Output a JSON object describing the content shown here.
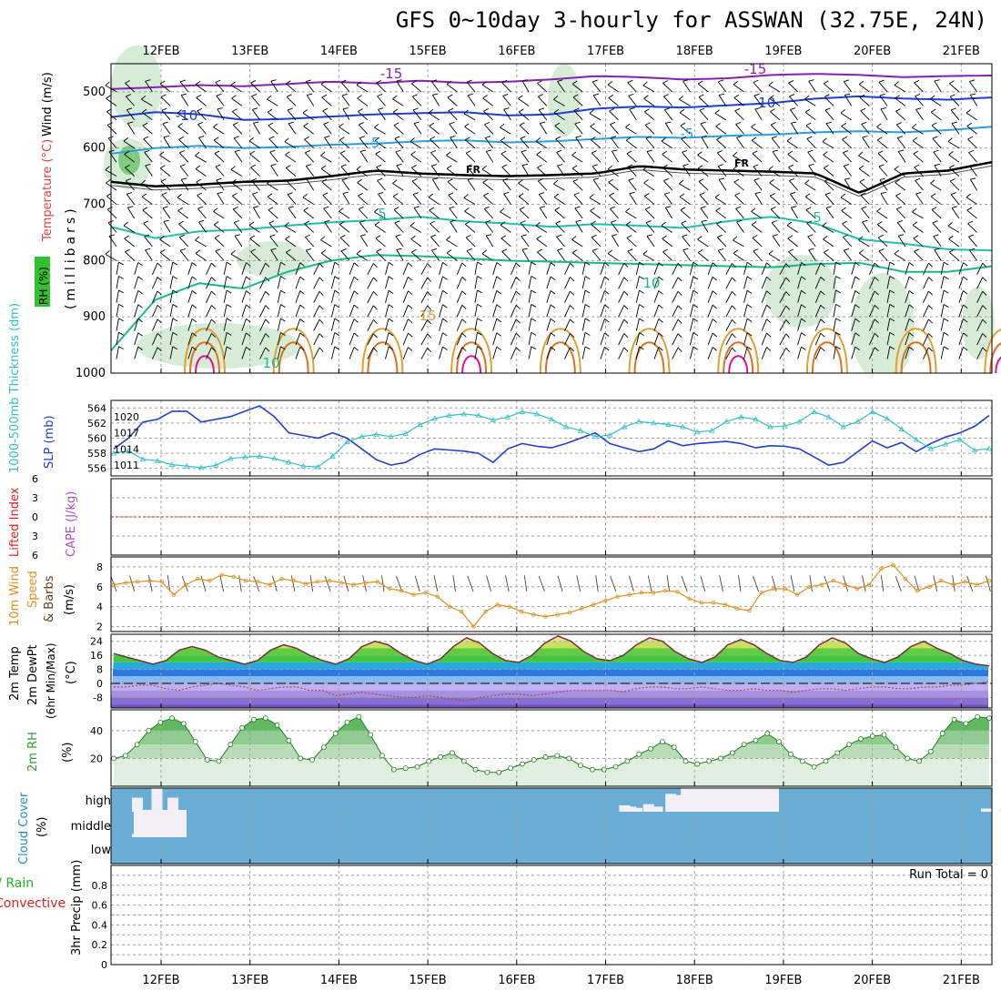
{
  "title": "GFS 0~10day 3-hourly for ASSWAN (32.75E, 24N)",
  "colors": {
    "frame": "#000000",
    "grid": "#a0a0a0",
    "temp_m15": "#8a1fb3",
    "temp_m10": "#1e3fd0",
    "temp_m5": "#2aa0e0",
    "temp_fr": "#000000",
    "temp_p5": "#20c0b0",
    "temp_p10": "#18b890",
    "temp_p15": "#e0a030",
    "temp_p20": "#e07018",
    "temp_p25": "#e01090",
    "rh_fill": "#c8e6c8",
    "slp": "#2040d0",
    "thickness": "#30c0c8",
    "lifted": "#e02020",
    "cape": "#b050c0",
    "wind10m": "#e09020",
    "barb": "#604020",
    "t2m_line": "#7a3030",
    "dewpt_line": "#a05050",
    "rh2m": "#30a030",
    "cloud_bg": "#6aaed6",
    "cloud_fill": "#f2f0f6",
    "precip_total": "#20b020",
    "precip_conv": "#e02020"
  },
  "chart_data": [
    {
      "panel": "upper-air",
      "type": "heatmap",
      "x_ticks": [
        "12FEB",
        "13FEB",
        "14FEB",
        "15FEB",
        "16FEB",
        "17FEB",
        "18FEB",
        "19FEB",
        "20FEB",
        "21FEB"
      ],
      "ylabel": "(millibars)",
      "side_labels": [
        "Wind (m/s)",
        "Temperature (°C)",
        "RH (%)"
      ],
      "y_ticks": [
        500,
        600,
        700,
        800,
        900,
        1000
      ],
      "ylim": [
        450,
        1000
      ],
      "contour_labels": [
        "-15",
        "-10",
        "-5",
        "FR",
        "5",
        "10",
        "15"
      ],
      "isotherms": [
        {
          "name": "-15",
          "color_key": "temp_m15",
          "values": [
            495,
            492,
            488,
            490,
            486,
            482,
            485,
            480,
            484,
            482,
            478,
            472,
            474,
            478,
            476,
            470,
            468,
            470,
            474,
            472,
            471
          ]
        },
        {
          "name": "-10",
          "color_key": "temp_m10",
          "values": [
            545,
            536,
            540,
            550,
            548,
            544,
            540,
            538,
            536,
            542,
            540,
            530,
            526,
            528,
            524,
            520,
            512,
            508,
            512,
            514,
            510
          ]
        },
        {
          "name": "-5",
          "color_key": "temp_m5",
          "values": [
            610,
            600,
            596,
            600,
            598,
            594,
            592,
            588,
            586,
            590,
            588,
            584,
            580,
            582,
            578,
            576,
            572,
            570,
            572,
            568,
            562
          ]
        },
        {
          "name": "FR",
          "color_key": "temp_fr",
          "values": [
            660,
            668,
            665,
            660,
            658,
            650,
            640,
            645,
            648,
            650,
            648,
            645,
            632,
            638,
            640,
            642,
            645,
            680,
            645,
            640,
            625
          ]
        },
        {
          "name": "5",
          "color_key": "temp_p5",
          "values": [
            740,
            760,
            748,
            745,
            738,
            732,
            728,
            722,
            730,
            734,
            740,
            735,
            738,
            742,
            730,
            722,
            734,
            762,
            770,
            780,
            782
          ]
        },
        {
          "name": "10",
          "color_key": "temp_p10",
          "values": [
            960,
            870,
            840,
            850,
            820,
            800,
            790,
            792,
            796,
            800,
            802,
            804,
            806,
            808,
            810,
            812,
            806,
            804,
            820,
            820,
            810
          ]
        }
      ],
      "warm_cells_c": [
        15,
        20,
        25
      ]
    },
    {
      "panel": "thickness-slp",
      "type": "line",
      "x_ticks": [
        "12FEB",
        "13FEB",
        "14FEB",
        "15FEB",
        "16FEB",
        "17FEB",
        "18FEB",
        "19FEB",
        "20FEB",
        "21FEB"
      ],
      "left_label": "1000-500mb Thickness (dm)",
      "right_label": "SLP (mb)",
      "left_ticks": [
        556,
        558,
        560,
        562,
        564
      ],
      "left_lim": [
        555,
        565
      ],
      "right_ticks": [
        1011,
        1014,
        1017,
        1020
      ],
      "series": [
        {
          "name": "SLP",
          "unit": "mb",
          "color_key": "slp",
          "values": [
            1014,
            1016,
            1019,
            1019.5,
            1021,
            1021,
            1019,
            1019.5,
            1020,
            1021,
            1022,
            1020,
            1017,
            1016.5,
            1016,
            1017,
            1016,
            1014,
            1012,
            1011,
            1011.5,
            1013,
            1014,
            1013.8,
            1013.6,
            1013.2,
            1011.5,
            1014,
            1015,
            1014.5,
            1014.2,
            1015,
            1016,
            1017,
            1015,
            1014.2,
            1013.5,
            1014,
            1015.5,
            1014.6,
            1015,
            1015.2,
            1015.4,
            1015,
            1014.2,
            1014.6,
            1014.5,
            1014,
            1012.5,
            1011,
            1011.5,
            1013.5,
            1015.5,
            1014.2,
            1015.2,
            1013.5,
            1015,
            1016.2,
            1017,
            1018.2,
            1020.2
          ]
        },
        {
          "name": "Thickness",
          "unit": "dm",
          "color_key": "thickness",
          "values": [
            558,
            558.3,
            557.2,
            557,
            556.5,
            556.3,
            556.1,
            556.4,
            557.3,
            557.5,
            557.6,
            557.3,
            556.8,
            556.3,
            556.2,
            557.6,
            559.5,
            560.2,
            560.5,
            560.2,
            560.6,
            561.8,
            562.6,
            563.0,
            563.2,
            563.0,
            562.4,
            562.8,
            563.5,
            563.2,
            562.5,
            561.5,
            561,
            560.2,
            560.4,
            561.5,
            562.2,
            562,
            561.8,
            561.5,
            560.8,
            561,
            562.2,
            562.8,
            562.5,
            561.5,
            561.6,
            562.2,
            563.5,
            562.8,
            561.5,
            562.2,
            563.5,
            562.6,
            561.2,
            559.8,
            558.6,
            559.2,
            559.8,
            558.4,
            558.6
          ]
        }
      ]
    },
    {
      "panel": "stability",
      "type": "line",
      "left_label": "Lifted Index",
      "right_label": "CAPE (J/kg)",
      "y_ticks": [
        -6,
        -3,
        0,
        3,
        6
      ],
      "ylim": [
        -6,
        6
      ],
      "series": [
        {
          "name": "Lifted Index",
          "color_key": "lifted",
          "values": []
        },
        {
          "name": "CAPE",
          "color_key": "cape",
          "values": []
        }
      ]
    },
    {
      "panel": "wind10m",
      "type": "line",
      "left_label": "10m Wind Speed & Barbs",
      "unit_label": "(m/s)",
      "y_ticks": [
        2,
        4,
        6,
        8
      ],
      "ylim": [
        1.5,
        9
      ],
      "series": [
        {
          "name": "10m Wind Speed",
          "color_key": "wind10m",
          "values": [
            6.2,
            6.4,
            6.5,
            6.6,
            6.5,
            5.2,
            6.2,
            6.8,
            6.6,
            7.2,
            7.0,
            6.6,
            6.5,
            6.2,
            6.8,
            6.6,
            6.3,
            6.5,
            6.6,
            6.4,
            6.2,
            6.4,
            6.5,
            5.8,
            5.6,
            5.2,
            5.4,
            5.0,
            4.0,
            3.5,
            2.0,
            3.5,
            4.2,
            4.0,
            3.5,
            3.2,
            3.0,
            3.2,
            3.4,
            3.8,
            4.2,
            4.6,
            5.0,
            5.2,
            5.4,
            5.4,
            5.6,
            5.5,
            4.8,
            4.4,
            4.4,
            4.2,
            3.8,
            3.6,
            5.4,
            5.8,
            5.8,
            5.2,
            6.0,
            6.2,
            6.6,
            6.2,
            5.8,
            6.2,
            7.8,
            8.2,
            6.8,
            5.6,
            6.0,
            6.6,
            6.2,
            6.5,
            6.2,
            6.6
          ]
        }
      ]
    },
    {
      "panel": "temperature",
      "type": "area",
      "left_labels": [
        "2m Temp",
        "2m DewPt",
        "(6hr Min/Max)"
      ],
      "unit_label": "(°C)",
      "y_ticks": [
        -8,
        0,
        8,
        16,
        24
      ],
      "ylim": [
        -14,
        28
      ],
      "series": [
        {
          "name": "2m Temp",
          "color_key": "t2m_line",
          "values": [
            17,
            15,
            13,
            11,
            13,
            19,
            21,
            19,
            15,
            13,
            11,
            13,
            19,
            22,
            20,
            16,
            13,
            11,
            14,
            21,
            24,
            22,
            17,
            13,
            11,
            14,
            21,
            26,
            23,
            17,
            13,
            12,
            16,
            23,
            27,
            24,
            18,
            14,
            13,
            16,
            22,
            26,
            24,
            18,
            14,
            12,
            15,
            22,
            25,
            22,
            17,
            13,
            12,
            15,
            22,
            26,
            23,
            17,
            14,
            12,
            15,
            21,
            24,
            20,
            17,
            13,
            11,
            10
          ]
        },
        {
          "name": "2m DewPt",
          "color_key": "dewpt_line",
          "values": [
            -2,
            -2,
            -1,
            -1,
            -3,
            -4,
            -2,
            -1,
            0,
            -1,
            -2,
            -4,
            -3,
            -2,
            -2,
            -4,
            -4,
            -7,
            -6,
            -5,
            -6,
            -7,
            -8,
            -8,
            -7,
            -8,
            -9,
            -10,
            -8,
            -7,
            -6,
            -6,
            -7,
            -6,
            -5,
            -4,
            -4,
            -4,
            -4,
            -5,
            -3,
            -2,
            -2,
            -3,
            -3,
            -2,
            -3,
            -4,
            -4,
            -3,
            -4,
            -4,
            -5,
            -4,
            -3,
            -3,
            -4,
            -3,
            -2,
            -2,
            -3,
            -3,
            -2,
            -2,
            -1,
            -1,
            0,
            1
          ]
        }
      ]
    },
    {
      "panel": "rh2m",
      "type": "area",
      "left_label": "2m RH",
      "unit_label": "(%)",
      "y_ticks": [
        20,
        40
      ],
      "ylim": [
        0,
        55
      ],
      "series": [
        {
          "name": "2m RH",
          "color_key": "rh2m",
          "values": [
            20,
            22,
            30,
            40,
            46,
            49,
            45,
            32,
            19,
            18,
            30,
            42,
            48,
            49,
            44,
            33,
            20,
            19,
            28,
            38,
            46,
            50,
            37,
            22,
            12,
            13,
            14,
            18,
            21,
            24,
            18,
            12,
            10,
            10,
            13,
            16,
            19,
            21,
            22,
            20,
            15,
            12,
            12,
            14,
            18,
            23,
            27,
            32,
            28,
            18,
            16,
            18,
            20,
            24,
            30,
            33,
            38,
            32,
            23,
            18,
            14,
            18,
            24,
            30,
            34,
            36,
            37,
            28,
            20,
            18,
            25,
            38,
            48,
            45,
            50,
            49
          ]
        }
      ]
    },
    {
      "panel": "cloud",
      "type": "area",
      "left_label": "Cloud Cover",
      "unit_label": "(%)",
      "y_ticks": [
        "high",
        "middle",
        "low"
      ],
      "layers": [
        {
          "name": "high",
          "segments": [
            [
              0,
              0.22
            ],
            [
              0.22,
              0.4
            ],
            [
              0.4,
              0.22
            ],
            [
              5.48,
              0.1
            ],
            [
              5.55,
              0.08
            ],
            [
              5.62,
              0.06
            ],
            [
              5.75,
              0.12
            ],
            [
              5.85,
              0.08
            ],
            [
              6.0,
              0.28
            ],
            [
              6.1,
              0.26
            ],
            [
              6.4,
              0.3
            ],
            [
              6.5,
              0.3
            ],
            [
              6.8,
              0.3
            ],
            [
              7.0,
              0.3
            ],
            [
              9.55,
              0.05
            ],
            [
              9.75,
              0.05
            ],
            [
              9.85,
              0.1
            ],
            [
              9.95,
              0.1
            ]
          ]
        },
        {
          "name": "middle",
          "segments": [
            [
              0,
              0.05
            ],
            [
              0.22,
              0.2
            ],
            [
              0.4,
              0.26
            ]
          ]
        },
        {
          "name": "low",
          "segments": []
        }
      ]
    },
    {
      "panel": "precip",
      "type": "bar",
      "left_labels": [
        "Total / Rain",
        "Convective"
      ],
      "ylabel": "3hr Precip (mm)",
      "y_ticks": [
        0,
        0.2,
        0.4,
        0.6,
        0.8
      ],
      "ylim": [
        0,
        1.0
      ],
      "run_total_label": "Run Total = 0",
      "values": []
    }
  ]
}
